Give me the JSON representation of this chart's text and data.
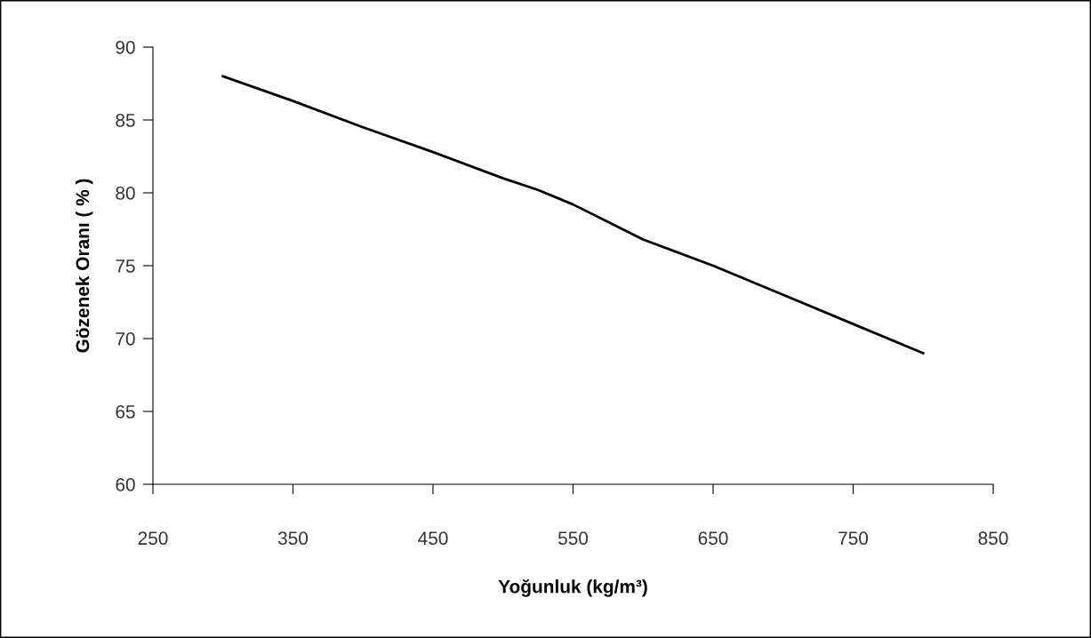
{
  "chart_data": {
    "type": "line",
    "xlabel": "Yoğunluk (kg/m³)",
    "ylabel": "Gözenek Oranı ( % )",
    "x": [
      300,
      350,
      400,
      450,
      500,
      525,
      550,
      575,
      600,
      650,
      700,
      750,
      800
    ],
    "series": [
      {
        "color": "#000000",
        "values": [
          88,
          86.3,
          84.5,
          82.8,
          81,
          80.2,
          79.2,
          78,
          76.8,
          75,
          73,
          71,
          69
        ]
      }
    ],
    "xlim": [
      250,
      850
    ],
    "xticks": [
      250,
      350,
      450,
      550,
      650,
      750,
      850
    ],
    "ylim": [
      60,
      90
    ],
    "yticks": [
      60,
      65,
      70,
      75,
      80,
      85,
      90
    ],
    "grid": false,
    "legend": false,
    "marker": "none",
    "line_style": "solid"
  }
}
